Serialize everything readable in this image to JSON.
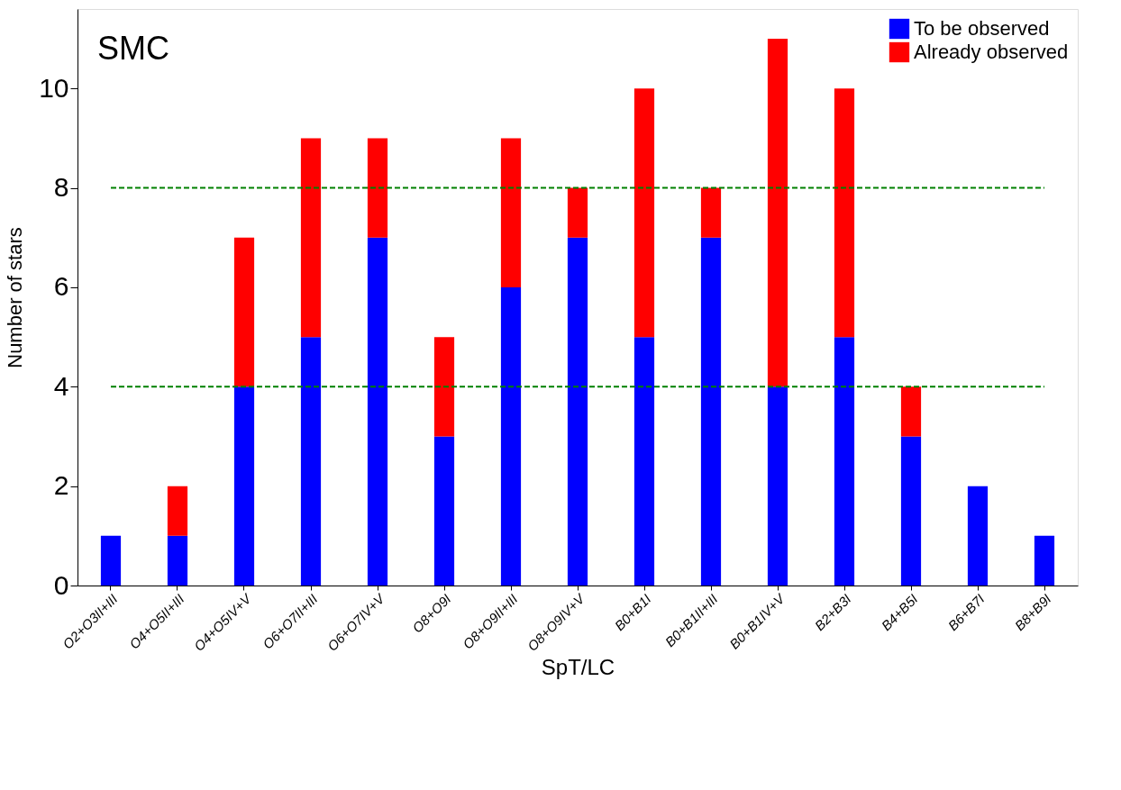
{
  "chart_data": {
    "type": "bar",
    "stacked": true,
    "xlabel": "SpT/LC",
    "ylabel": "Number of stars",
    "annotations": [
      "SMC"
    ],
    "categories": [
      "O2+O3II+III",
      "O4+O5II+III",
      "O4+O5IV+V",
      "O6+O7II+III",
      "O6+O7IV+V",
      "O8+O9I",
      "O8+O9II+III",
      "O8+O9IV+V",
      "B0+B1I",
      "B0+B1II+III",
      "B0+B1IV+V",
      "B2+B3I",
      "B4+B5I",
      "B6+B7I",
      "B8+B9I"
    ],
    "series": [
      {
        "name": "To be observed",
        "color": "#0000ff",
        "values": [
          1,
          1,
          4,
          5,
          7,
          3,
          6,
          7,
          5,
          7,
          4,
          5,
          3,
          2,
          1
        ]
      },
      {
        "name": "Already observed",
        "color": "#ff0000",
        "values": [
          null,
          1,
          3,
          4,
          2,
          2,
          3,
          1,
          5,
          1,
          7,
          5,
          1,
          null,
          null
        ]
      }
    ],
    "ylim": [
      0,
      11.6
    ],
    "yticks": [
      0,
      2,
      4,
      6,
      8,
      10
    ],
    "ref_lines": [
      {
        "axis": "y",
        "value": 4,
        "color": "#008000",
        "line_style": "dashed"
      },
      {
        "axis": "y",
        "value": 8,
        "color": "#008000",
        "line_style": "dashed"
      }
    ],
    "grid": false,
    "legend": "top right"
  }
}
